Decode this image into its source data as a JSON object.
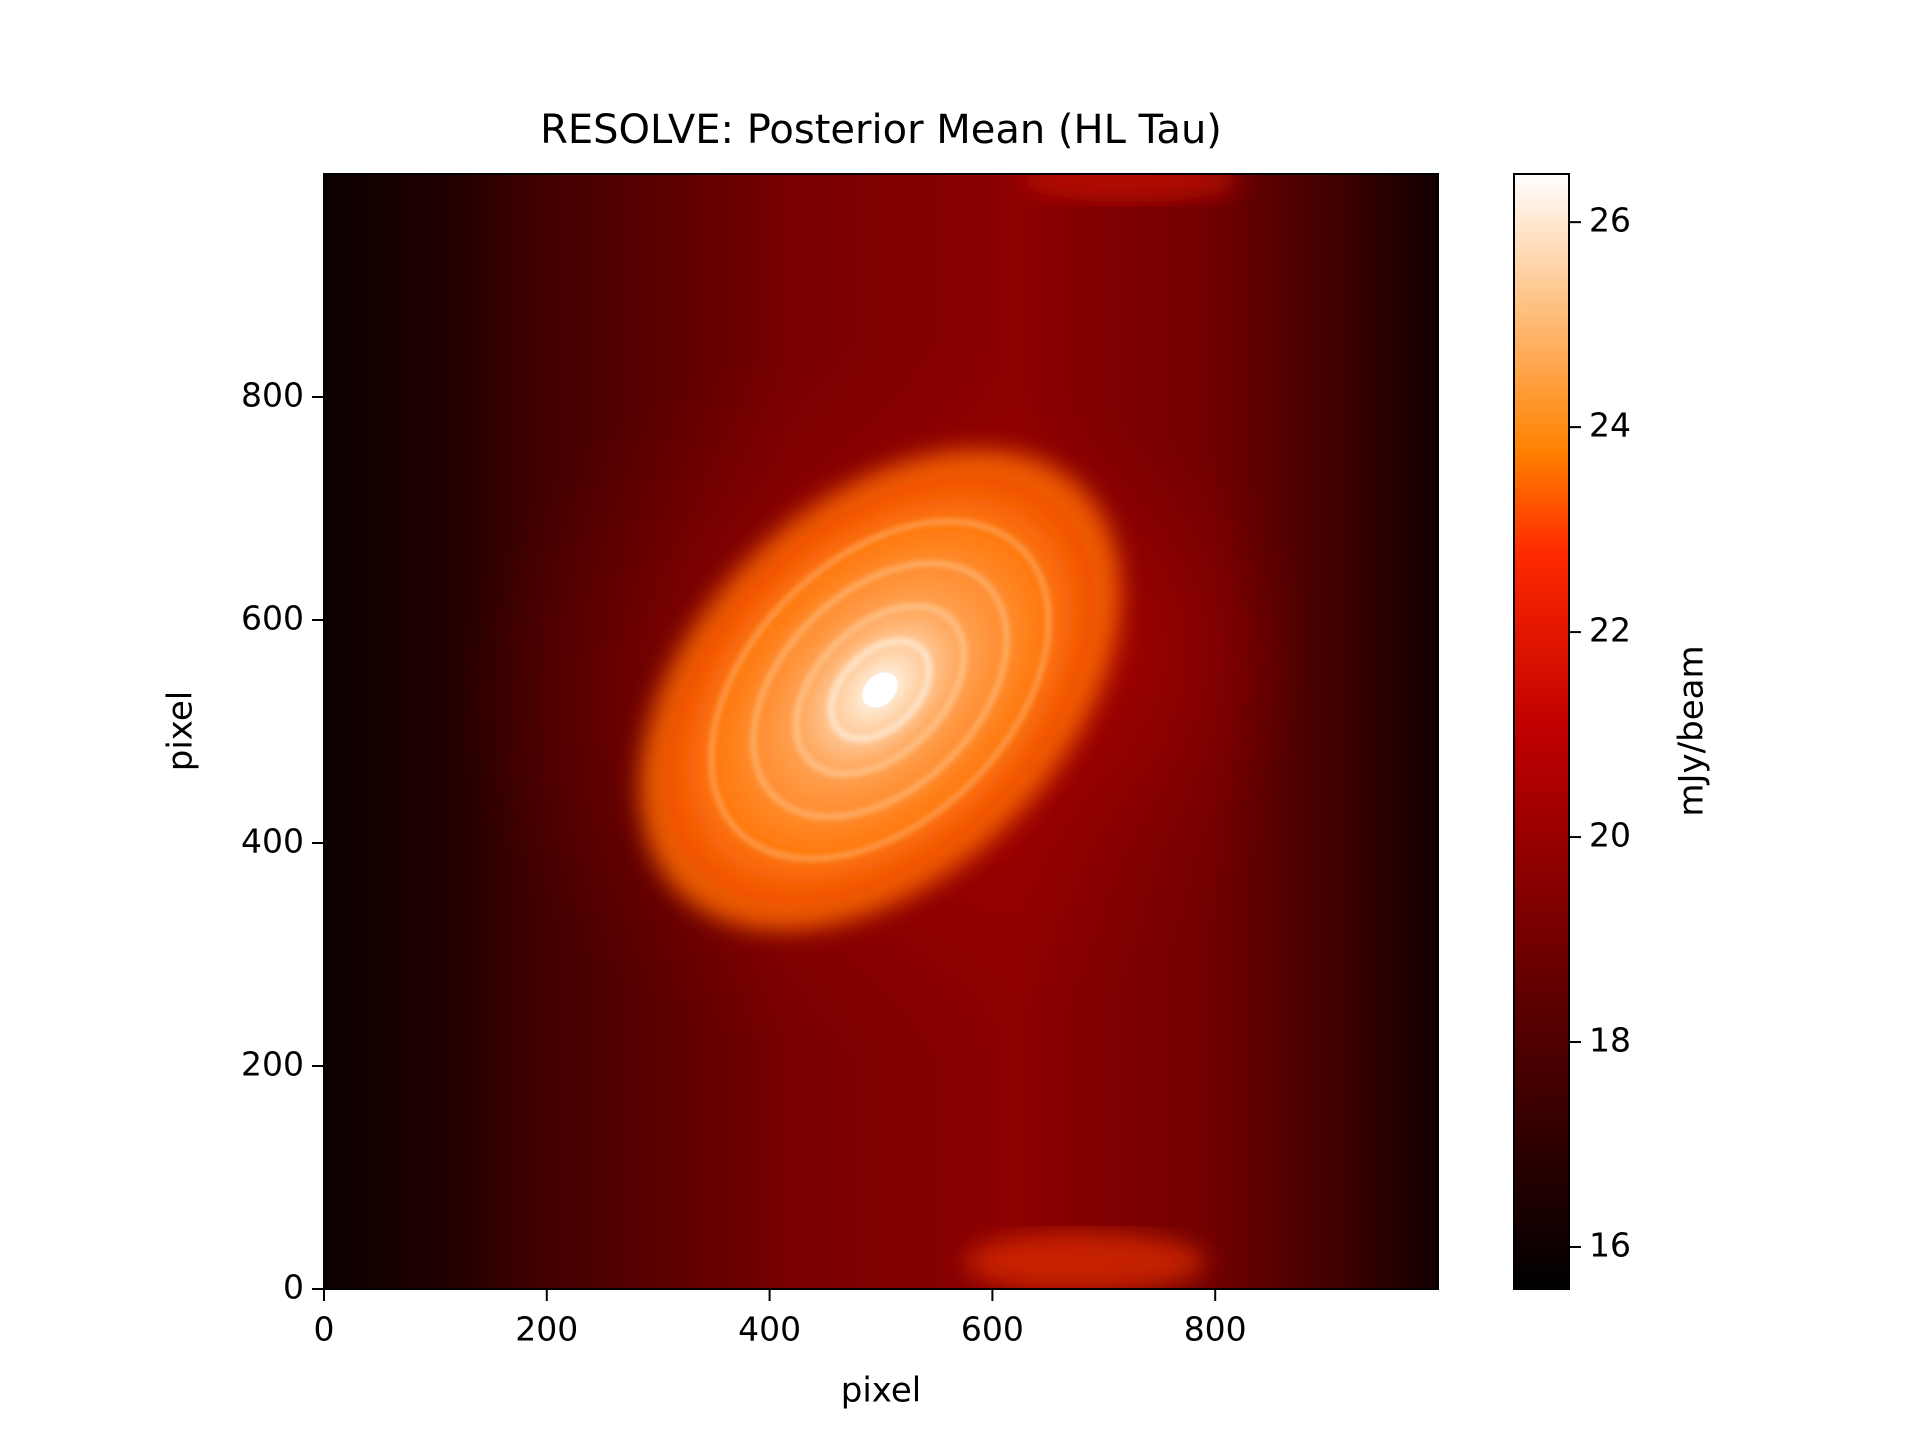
{
  "chart_data": {
    "type": "heatmap",
    "title": "RESOLVE: Posterior Mean (HL Tau)",
    "xlabel": "pixel",
    "ylabel": "pixel",
    "xlim": [
      0,
      1000
    ],
    "ylim": [
      0,
      1000
    ],
    "xticks": [
      0,
      200,
      400,
      600,
      800
    ],
    "yticks": [
      0,
      200,
      400,
      600,
      800
    ],
    "colorbar": {
      "label": "mJy/beam",
      "lim": [
        15.59,
        26.47
      ],
      "ticks": [
        16,
        18,
        20,
        22,
        24,
        26
      ],
      "colormap": "gist_heat"
    }
  }
}
